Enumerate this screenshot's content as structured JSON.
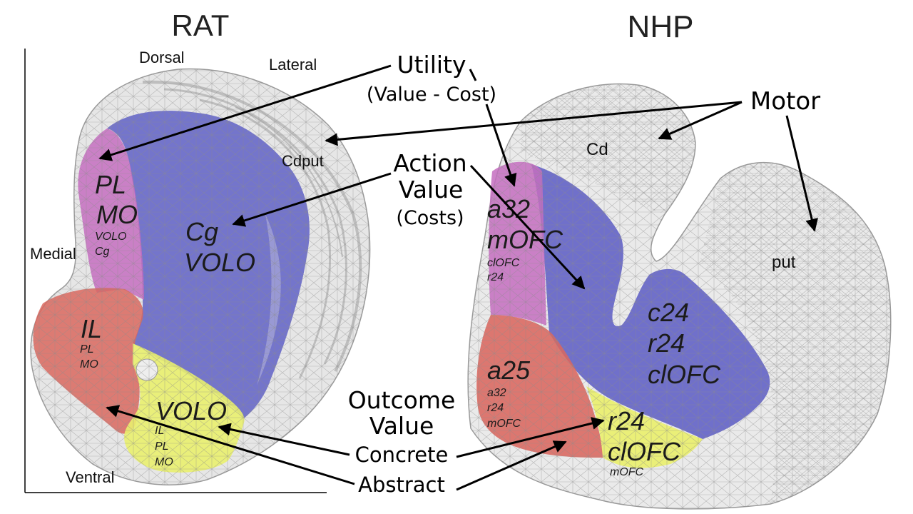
{
  "colors": {
    "mesh": "#c9c9c9",
    "mesh_line": "#8a8a8a",
    "pink_region": "#c46dc0",
    "blue_region": "#5a5bc4",
    "red_region": "#d9675e",
    "yellow_region": "#e9ef6e",
    "arrow": "#000000"
  },
  "rat": {
    "title": "RAT",
    "orientation": {
      "dorsal": "Dorsal",
      "lateral": "Lateral",
      "medial": "Medial",
      "ventral": "Ventral"
    },
    "structure_label": "Cdput",
    "regions": {
      "pink": {
        "primary": [
          "PL",
          "MO"
        ],
        "secondary": [
          "VOLO",
          "Cg"
        ]
      },
      "blue": {
        "primary": [
          "Cg",
          "VOLO"
        ]
      },
      "red": {
        "primary": [
          "IL"
        ],
        "secondary": [
          "PL",
          "MO"
        ]
      },
      "yellow": {
        "primary": [
          "VOLO"
        ],
        "secondary": [
          "IL",
          "PL",
          "MO"
        ]
      }
    }
  },
  "nhp": {
    "title": "NHP",
    "structure_labels": {
      "cd": "Cd",
      "put": "put"
    },
    "regions": {
      "pink": {
        "primary": [
          "a32",
          "mOFC"
        ],
        "secondary": [
          "clOFC",
          "r24"
        ]
      },
      "blue": {
        "primary": [
          "c24",
          "r24",
          "clOFC"
        ]
      },
      "red": {
        "primary": [
          "a25"
        ],
        "secondary": [
          "a32",
          "r24",
          "mOFC"
        ]
      },
      "yellow": {
        "primary": [
          "r24",
          "clOFC"
        ],
        "secondary": [
          "mOFC"
        ]
      }
    }
  },
  "annotations": {
    "utility": {
      "title": "Utility",
      "subtitle": "(Value - Cost)"
    },
    "motor": "Motor",
    "action_value": {
      "line1": "Action",
      "line2": "Value",
      "line3": "(Costs)"
    },
    "outcome_value": {
      "line1": "Outcome",
      "line2": "Value"
    },
    "concrete": "Concrete",
    "abstract": "Abstract"
  }
}
